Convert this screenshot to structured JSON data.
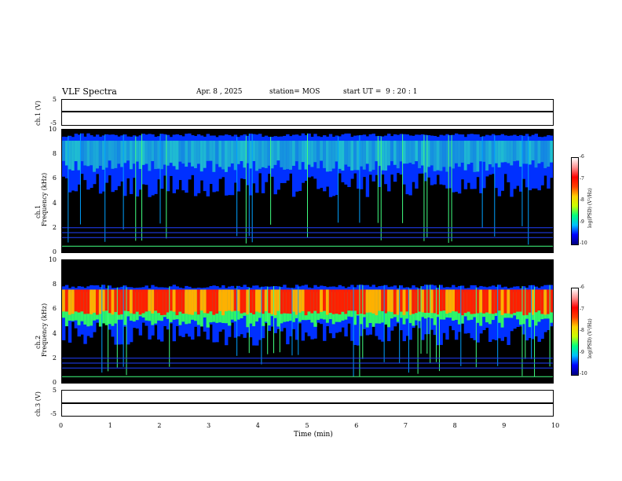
{
  "header": {
    "title": "VLF Spectra",
    "date": "Apr. 8 , 2025",
    "station": "station= MOS",
    "start_label": "start UT =",
    "start_time": "9 : 20 : 1"
  },
  "colorbar": {
    "label": "log(PSD) (V²/Hz)",
    "ticks": [
      "-6",
      "-7",
      "-8",
      "-9",
      "-10"
    ]
  },
  "colors": {
    "low": "#000080",
    "mid": "#00ff80",
    "high": "#ff0000",
    "background": "#000000"
  },
  "chart_data": [
    {
      "type": "line",
      "ylabel": "ch.1 (V)",
      "ylim": [
        -5,
        5
      ],
      "yticks": [
        "5",
        "-5"
      ],
      "note": "waveform trace near 0 V"
    },
    {
      "type": "heatmap",
      "ylabel_line1": "ch.1",
      "ylabel_line2": "Frequency (kHz)",
      "ylim": [
        0,
        10
      ],
      "yticks": [
        "0",
        "2",
        "4",
        "6",
        "8",
        "10"
      ],
      "band_center_khz": 8.5,
      "xlim": [
        0,
        10
      ]
    },
    {
      "type": "heatmap",
      "ylabel_line1": "ch.2",
      "ylabel_line2": "Frequency (kHz)",
      "ylim": [
        0,
        10
      ],
      "yticks": [
        "0",
        "2",
        "4",
        "6",
        "8",
        "10"
      ],
      "band_center_khz": 6.8,
      "xlim": [
        0,
        10
      ]
    },
    {
      "type": "line",
      "ylabel": "ch.3 (V)",
      "ylim": [
        -5,
        5
      ],
      "yticks": [
        "5",
        "-5"
      ],
      "xlabel": "Time (min)",
      "xticks": [
        "0",
        "1",
        "2",
        "3",
        "4",
        "5",
        "6",
        "7",
        "8",
        "9",
        "10"
      ],
      "xlim": [
        0,
        10
      ]
    }
  ]
}
